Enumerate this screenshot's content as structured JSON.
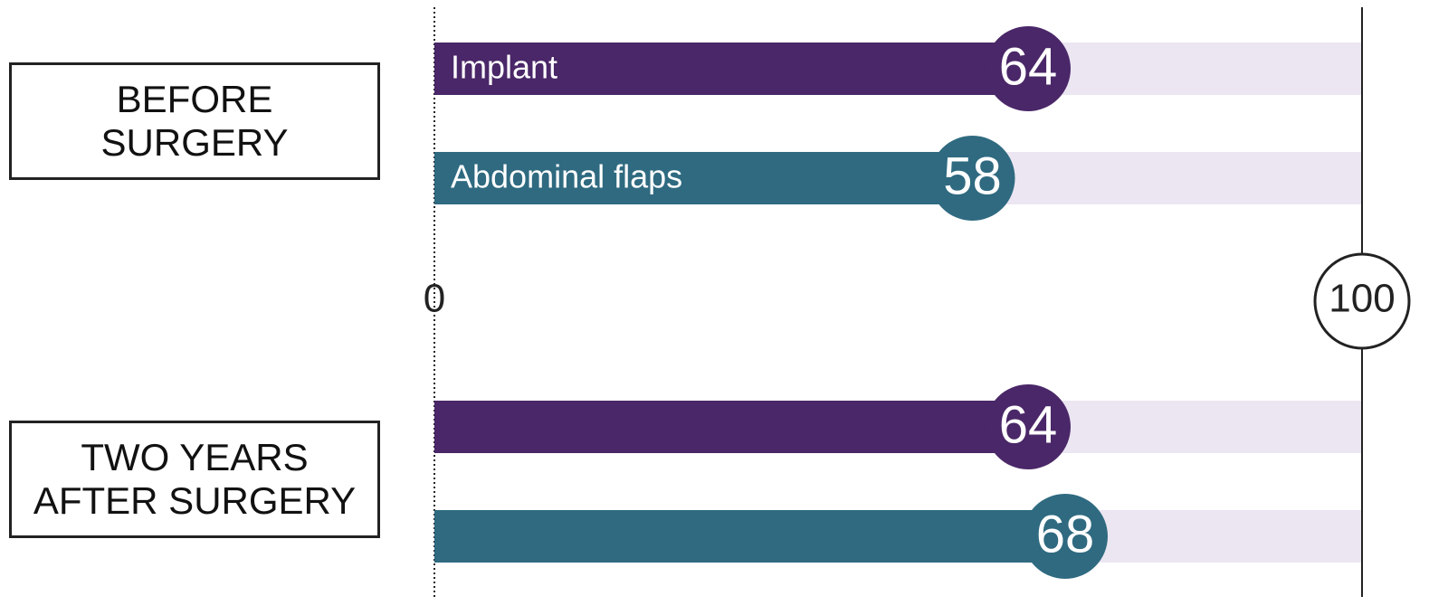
{
  "chart_data": {
    "type": "bar",
    "orientation": "horizontal",
    "categories": [
      "BEFORE SURGERY",
      "TWO YEARS AFTER SURGERY"
    ],
    "series": [
      {
        "name": "Implant",
        "color": "#4a2768",
        "values": [
          64,
          64
        ]
      },
      {
        "name": "Abdominal flaps",
        "color": "#2f6a80",
        "values": [
          58,
          68
        ]
      }
    ],
    "xlim": [
      0,
      100
    ],
    "xticks": [
      0,
      100
    ],
    "track_color": "#ebe6f2"
  }
}
